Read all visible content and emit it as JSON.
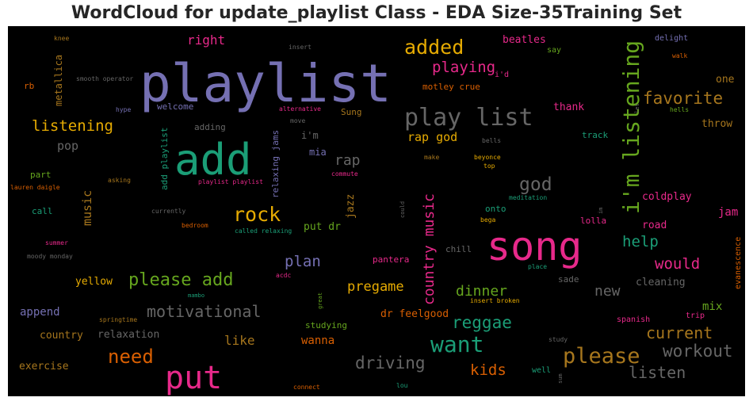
{
  "chart_data": {
    "type": "wordcloud",
    "title": "WordCloud for update_playlist Class - EDA Size-35Training Set",
    "background": "#000000",
    "palette": {
      "purple": "#7570b3",
      "green": "#1b9e77",
      "pink": "#e7298a",
      "orange": "#d95f02",
      "gold": "#e6ab02",
      "olive": "#66a61e",
      "brown": "#a6761d",
      "gray": "#666666"
    },
    "words": [
      {
        "text": "playlist",
        "color": "#7570b3",
        "weight": 66,
        "rot": 0
      },
      {
        "text": "add",
        "color": "#1b9e77",
        "weight": 54,
        "rot": 0
      },
      {
        "text": "song",
        "color": "#e7298a",
        "weight": 50,
        "rot": 0
      },
      {
        "text": "put",
        "color": "#e7298a",
        "weight": 40,
        "rot": 0
      },
      {
        "text": "play list",
        "color": "#666666",
        "weight": 30,
        "rot": 0
      },
      {
        "text": "i'm listening",
        "color": "#66a61e",
        "weight": 28,
        "rot": -90
      },
      {
        "text": "want",
        "color": "#1b9e77",
        "weight": 28,
        "rot": 0
      },
      {
        "text": "please",
        "color": "#a6761d",
        "weight": 27,
        "rot": 0
      },
      {
        "text": "added",
        "color": "#e6ab02",
        "weight": 25,
        "rot": 0
      },
      {
        "text": "rock",
        "color": "#e6ab02",
        "weight": 25,
        "rot": 0
      },
      {
        "text": "need",
        "color": "#d95f02",
        "weight": 24,
        "rot": 0
      },
      {
        "text": "please add",
        "color": "#66a61e",
        "weight": 22,
        "rot": 0
      },
      {
        "text": "god",
        "color": "#666666",
        "weight": 23,
        "rot": 0
      },
      {
        "text": "workout",
        "color": "#666666",
        "weight": 21,
        "rot": 0
      },
      {
        "text": "driving",
        "color": "#666666",
        "weight": 21,
        "rot": 0
      },
      {
        "text": "favorite",
        "color": "#a6761d",
        "weight": 21,
        "rot": 0
      },
      {
        "text": "motivational",
        "color": "#666666",
        "weight": 20,
        "rot": 0
      },
      {
        "text": "reggae",
        "color": "#1b9e77",
        "weight": 21,
        "rot": 0
      },
      {
        "text": "listen",
        "color": "#666666",
        "weight": 20,
        "rot": 0
      },
      {
        "text": "current",
        "color": "#a6761d",
        "weight": 20,
        "rot": 0
      },
      {
        "text": "listening",
        "color": "#e6ab02",
        "weight": 19,
        "rot": 0
      },
      {
        "text": "playing",
        "color": "#e7298a",
        "weight": 19,
        "rot": 0
      },
      {
        "text": "plan",
        "color": "#7570b3",
        "weight": 19,
        "rot": 0
      },
      {
        "text": "help",
        "color": "#1b9e77",
        "weight": 19,
        "rot": 0
      },
      {
        "text": "would",
        "color": "#e7298a",
        "weight": 19,
        "rot": 0
      },
      {
        "text": "kids",
        "color": "#d95f02",
        "weight": 19,
        "rot": 0
      },
      {
        "text": "country music",
        "color": "#e7298a",
        "weight": 18,
        "rot": -90
      },
      {
        "text": "rap",
        "color": "#666666",
        "weight": 18,
        "rot": 0
      },
      {
        "text": "new",
        "color": "#666666",
        "weight": 18,
        "rot": 0
      },
      {
        "text": "dinner",
        "color": "#66a61e",
        "weight": 18,
        "rot": 0
      },
      {
        "text": "pregame",
        "color": "#e6ab02",
        "weight": 17,
        "rot": 0
      },
      {
        "text": "like",
        "color": "#a6761d",
        "weight": 16,
        "rot": 0
      },
      {
        "text": "right",
        "color": "#e7298a",
        "weight": 16,
        "rot": 0
      },
      {
        "text": "rap god",
        "color": "#e6ab02",
        "weight": 15,
        "rot": 0
      },
      {
        "text": "music",
        "color": "#a6761d",
        "weight": 15,
        "rot": -90
      },
      {
        "text": "pop",
        "color": "#666666",
        "weight": 15,
        "rot": 0
      },
      {
        "text": "append",
        "color": "#7570b3",
        "weight": 14,
        "rot": 0
      },
      {
        "text": "wanna",
        "color": "#d95f02",
        "weight": 14,
        "rot": 0
      },
      {
        "text": "jam",
        "color": "#e7298a",
        "weight": 14,
        "rot": 0
      },
      {
        "text": "throw",
        "color": "#a6761d",
        "weight": 13,
        "rot": 0
      },
      {
        "text": "mix",
        "color": "#66a61e",
        "weight": 14,
        "rot": 0
      },
      {
        "text": "dr feelgood",
        "color": "#d95f02",
        "weight": 13,
        "rot": 0
      },
      {
        "text": "cleaning",
        "color": "#666666",
        "weight": 13,
        "rot": 0
      },
      {
        "text": "road",
        "color": "#e7298a",
        "weight": 13,
        "rot": 0
      },
      {
        "text": "one",
        "color": "#a6761d",
        "weight": 13,
        "rot": 0
      },
      {
        "text": "exercise",
        "color": "#a6761d",
        "weight": 13,
        "rot": 0
      },
      {
        "text": "country",
        "color": "#a6761d",
        "weight": 13,
        "rot": 0
      },
      {
        "text": "relaxation",
        "color": "#666666",
        "weight": 13,
        "rot": 0
      },
      {
        "text": "beatles",
        "color": "#e7298a",
        "weight": 13,
        "rot": 0
      },
      {
        "text": "coldplay",
        "color": "#e7298a",
        "weight": 13,
        "rot": 0
      },
      {
        "text": "thank",
        "color": "#e7298a",
        "weight": 13,
        "rot": 0
      },
      {
        "text": "yellow",
        "color": "#e6ab02",
        "weight": 13,
        "rot": 0
      },
      {
        "text": "jazz",
        "color": "#a6761d",
        "weight": 13,
        "rot": -90
      },
      {
        "text": "put dr",
        "color": "#66a61e",
        "weight": 13,
        "rot": 0
      },
      {
        "text": "i'm",
        "color": "#666666",
        "weight": 12,
        "rot": 0
      },
      {
        "text": "mia",
        "color": "#7570b3",
        "weight": 12,
        "rot": 0
      },
      {
        "text": "metallica",
        "color": "#a6761d",
        "weight": 12,
        "rot": -90
      },
      {
        "text": "add playlist",
        "color": "#1b9e77",
        "weight": 11,
        "rot": -90
      },
      {
        "text": "relaxing jams",
        "color": "#7570b3",
        "weight": 11,
        "rot": -90
      },
      {
        "text": "motley crue",
        "color": "#d95f02",
        "weight": 11,
        "rot": 0
      },
      {
        "text": "chill",
        "color": "#666666",
        "weight": 11,
        "rot": 0
      },
      {
        "text": "sade",
        "color": "#666666",
        "weight": 11,
        "rot": 0
      },
      {
        "text": "track",
        "color": "#1b9e77",
        "weight": 11,
        "rot": 0
      },
      {
        "text": "onto",
        "color": "#1b9e77",
        "weight": 11,
        "rot": 0
      },
      {
        "text": "lolla",
        "color": "#e7298a",
        "weight": 11,
        "rot": 0
      },
      {
        "text": "evanescence",
        "color": "#d95f02",
        "weight": 10,
        "rot": -90
      },
      {
        "text": "studying",
        "color": "#66a61e",
        "weight": 11,
        "rot": 0
      },
      {
        "text": "pantera",
        "color": "#e7298a",
        "weight": 11,
        "rot": 0
      },
      {
        "text": "adding",
        "color": "#666666",
        "weight": 11,
        "rot": 0
      },
      {
        "text": "welcome",
        "color": "#7570b3",
        "weight": 11,
        "rot": 0
      },
      {
        "text": "Sung",
        "color": "#a6761d",
        "weight": 11,
        "rot": 0
      },
      {
        "text": "part",
        "color": "#66a61e",
        "weight": 11,
        "rot": 0
      },
      {
        "text": "call",
        "color": "#1b9e77",
        "weight": 11,
        "rot": 0
      },
      {
        "text": "rb",
        "color": "#d95f02",
        "weight": 11,
        "rot": 0
      },
      {
        "text": "delight",
        "color": "#7570b3",
        "weight": 10,
        "rot": 0
      },
      {
        "text": "say",
        "color": "#66a61e",
        "weight": 10,
        "rot": 0
      },
      {
        "text": "spanish",
        "color": "#e7298a",
        "weight": 10,
        "rot": 0
      },
      {
        "text": "trip",
        "color": "#e7298a",
        "weight": 10,
        "rot": 0
      },
      {
        "text": "i'd",
        "color": "#e7298a",
        "weight": 10,
        "rot": 0
      },
      {
        "text": "knee",
        "color": "#a6761d",
        "weight": 8,
        "rot": 0
      },
      {
        "text": "insert",
        "color": "#666666",
        "weight": 8,
        "rot": 0
      },
      {
        "text": "smooth operator",
        "color": "#666666",
        "weight": 8,
        "rot": 0
      },
      {
        "text": "hype",
        "color": "#7570b3",
        "weight": 8,
        "rot": 0
      },
      {
        "text": "alternative",
        "color": "#e7298a",
        "weight": 8,
        "rot": 0
      },
      {
        "text": "move",
        "color": "#666666",
        "weight": 8,
        "rot": 0
      },
      {
        "text": "walk",
        "color": "#d95f02",
        "weight": 8,
        "rot": 0
      },
      {
        "text": "hells",
        "color": "#66a61e",
        "weight": 8,
        "rot": 0
      },
      {
        "text": "let",
        "color": "#666666",
        "weight": 7,
        "rot": -90
      },
      {
        "text": "bells",
        "color": "#666666",
        "weight": 8,
        "rot": 0
      },
      {
        "text": "beyonce",
        "color": "#e6ab02",
        "weight": 8,
        "rot": 0
      },
      {
        "text": "top",
        "color": "#e6ab02",
        "weight": 8,
        "rot": 0
      },
      {
        "text": "make",
        "color": "#a6761d",
        "weight": 8,
        "rot": 0
      },
      {
        "text": "commute",
        "color": "#e7298a",
        "weight": 8,
        "rot": 0
      },
      {
        "text": "lauren daigle",
        "color": "#d95f02",
        "weight": 8,
        "rot": 0
      },
      {
        "text": "asking",
        "color": "#a6761d",
        "weight": 8,
        "rot": 0
      },
      {
        "text": "playlist playlist",
        "color": "#e7298a",
        "weight": 8,
        "rot": 0
      },
      {
        "text": "meditation",
        "color": "#1b9e77",
        "weight": 8,
        "rot": 0
      },
      {
        "text": "currently",
        "color": "#666666",
        "weight": 8,
        "rot": 0
      },
      {
        "text": "could",
        "color": "#666666",
        "weight": 7,
        "rot": -90
      },
      {
        "text": "bega",
        "color": "#e6ab02",
        "weight": 8,
        "rot": 0
      },
      {
        "text": "im",
        "color": "#666666",
        "weight": 7,
        "rot": -90
      },
      {
        "text": "bedroom",
        "color": "#d95f02",
        "weight": 8,
        "rot": 0
      },
      {
        "text": "called relaxing",
        "color": "#1b9e77",
        "weight": 8,
        "rot": 0
      },
      {
        "text": "summer",
        "color": "#e7298a",
        "weight": 8,
        "rot": 0
      },
      {
        "text": "moody monday",
        "color": "#666666",
        "weight": 8,
        "rot": 0
      },
      {
        "text": "place",
        "color": "#1b9e77",
        "weight": 8,
        "rot": 0
      },
      {
        "text": "acdc",
        "color": "#e7298a",
        "weight": 8,
        "rot": 0
      },
      {
        "text": "mambo",
        "color": "#1b9e77",
        "weight": 7,
        "rot": 0
      },
      {
        "text": "great",
        "color": "#66a61e",
        "weight": 7,
        "rot": -90
      },
      {
        "text": "insert broken",
        "color": "#e6ab02",
        "weight": 8,
        "rot": 0
      },
      {
        "text": "springtime",
        "color": "#a6761d",
        "weight": 8,
        "rot": 0
      },
      {
        "text": "study",
        "color": "#666666",
        "weight": 8,
        "rot": 0
      },
      {
        "text": "well",
        "color": "#1b9e77",
        "weight": 10,
        "rot": 0
      },
      {
        "text": "sum",
        "color": "#666666",
        "weight": 7,
        "rot": -90
      },
      {
        "text": "lou",
        "color": "#1b9e77",
        "weight": 8,
        "rot": 0
      },
      {
        "text": "connect",
        "color": "#d95f02",
        "weight": 8,
        "rot": 0
      }
    ]
  }
}
